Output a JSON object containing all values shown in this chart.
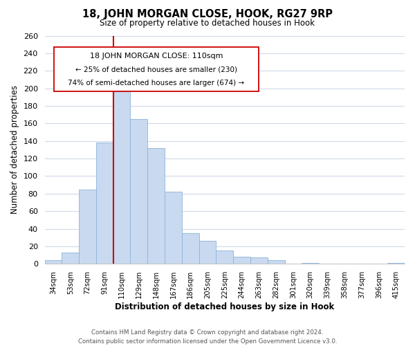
{
  "title": "18, JOHN MORGAN CLOSE, HOOK, RG27 9RP",
  "subtitle": "Size of property relative to detached houses in Hook",
  "xlabel": "Distribution of detached houses by size in Hook",
  "ylabel": "Number of detached properties",
  "bar_labels": [
    "34sqm",
    "53sqm",
    "72sqm",
    "91sqm",
    "110sqm",
    "129sqm",
    "148sqm",
    "167sqm",
    "186sqm",
    "205sqm",
    "225sqm",
    "244sqm",
    "263sqm",
    "282sqm",
    "301sqm",
    "320sqm",
    "339sqm",
    "358sqm",
    "377sqm",
    "396sqm",
    "415sqm"
  ],
  "bar_heights": [
    4,
    13,
    85,
    138,
    210,
    165,
    132,
    82,
    35,
    26,
    15,
    8,
    7,
    4,
    0,
    1,
    0,
    0,
    0,
    0,
    1
  ],
  "bar_color": "#c9d9f0",
  "bar_edge_color": "#8ab4d8",
  "vline_x_index": 4,
  "vline_color": "#cc0000",
  "ylim": [
    0,
    260
  ],
  "yticks": [
    0,
    20,
    40,
    60,
    80,
    100,
    120,
    140,
    160,
    180,
    200,
    220,
    240,
    260
  ],
  "annotation_title": "18 JOHN MORGAN CLOSE: 110sqm",
  "annotation_line1": "← 25% of detached houses are smaller (230)",
  "annotation_line2": "74% of semi-detached houses are larger (674) →",
  "footer_line1": "Contains HM Land Registry data © Crown copyright and database right 2024.",
  "footer_line2": "Contains public sector information licensed under the Open Government Licence v3.0.",
  "background_color": "#ffffff",
  "grid_color": "#d0d8e8"
}
